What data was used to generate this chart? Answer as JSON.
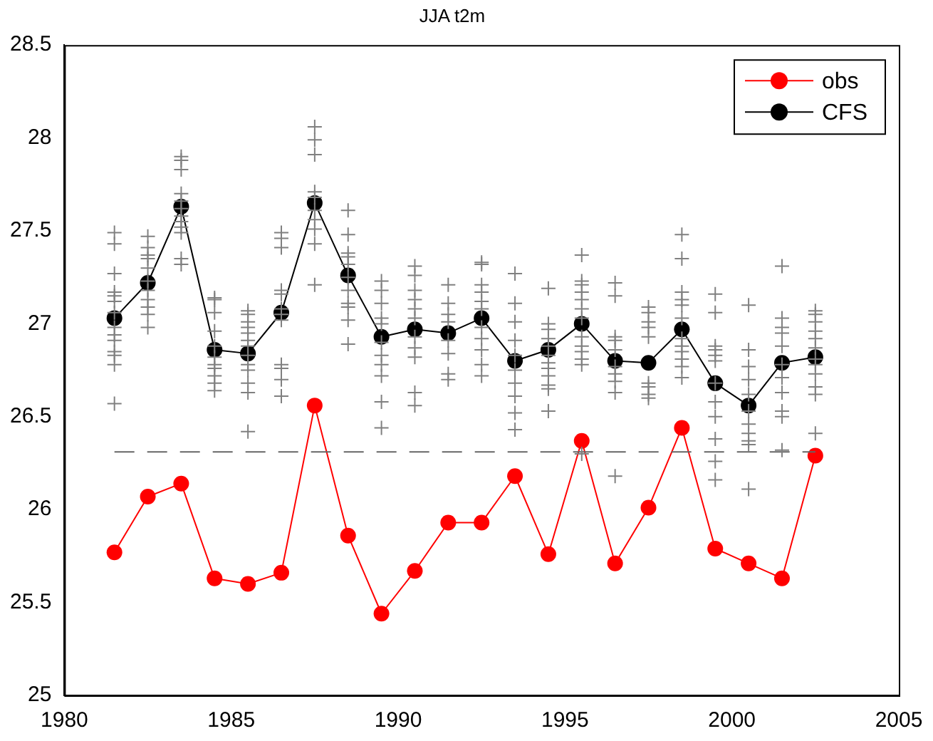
{
  "chart_data": {
    "type": "line",
    "title": "JJA t2m",
    "xlim": [
      1980,
      2005
    ],
    "xticks": [
      1980,
      1985,
      1990,
      1995,
      2000,
      2005
    ],
    "ylim": [
      25,
      28.5
    ],
    "yticks": [
      25,
      25.5,
      26,
      26.5,
      27,
      27.5,
      28,
      28.5
    ],
    "legend": "top right",
    "grid": false,
    "x": [
      1981.5,
      1982.5,
      1983.5,
      1984.5,
      1985.5,
      1986.5,
      1987.5,
      1988.5,
      1989.5,
      1990.5,
      1991.5,
      1992.5,
      1993.5,
      1994.5,
      1995.5,
      1996.5,
      1997.5,
      1998.5,
      1999.5,
      2000.5,
      2001.5,
      2002.5
    ],
    "series": [
      {
        "type": "scatter",
        "color": "#808080",
        "marker": "cross",
        "x": [
          1981.5,
          1981.5,
          1981.5,
          1981.5,
          1981.5,
          1981.5,
          1981.5,
          1981.5,
          1981.5,
          1981.5,
          1981.5,
          1981.5,
          1981.5,
          1981.5,
          1982.5,
          1982.5,
          1982.5,
          1982.5,
          1982.5,
          1982.5,
          1982.5,
          1982.5,
          1982.5,
          1982.5,
          1982.5,
          1983.5,
          1983.5,
          1983.5,
          1983.5,
          1983.5,
          1983.5,
          1983.5,
          1983.5,
          1983.5,
          1983.5,
          1983.5,
          1983.5,
          1984.5,
          1984.5,
          1984.5,
          1984.5,
          1984.5,
          1984.5,
          1984.5,
          1984.5,
          1984.5,
          1984.5,
          1984.5,
          1985.5,
          1985.5,
          1985.5,
          1985.5,
          1985.5,
          1985.5,
          1985.5,
          1985.5,
          1985.5,
          1985.5,
          1985.5,
          1985.5,
          1985.5,
          1986.5,
          1986.5,
          1986.5,
          1986.5,
          1986.5,
          1986.5,
          1986.5,
          1986.5,
          1986.5,
          1986.5,
          1986.5,
          1986.5,
          1987.5,
          1987.5,
          1987.5,
          1987.5,
          1987.5,
          1987.5,
          1987.5,
          1987.5,
          1987.5,
          1987.5,
          1988.5,
          1988.5,
          1988.5,
          1988.5,
          1988.5,
          1988.5,
          1988.5,
          1988.5,
          1988.5,
          1988.5,
          1988.5,
          1989.5,
          1989.5,
          1989.5,
          1989.5,
          1989.5,
          1989.5,
          1989.5,
          1989.5,
          1989.5,
          1989.5,
          1989.5,
          1990.5,
          1990.5,
          1990.5,
          1990.5,
          1990.5,
          1990.5,
          1990.5,
          1990.5,
          1990.5,
          1990.5,
          1990.5,
          1991.5,
          1991.5,
          1991.5,
          1991.5,
          1991.5,
          1991.5,
          1991.5,
          1991.5,
          1992.5,
          1992.5,
          1992.5,
          1992.5,
          1992.5,
          1992.5,
          1992.5,
          1992.5,
          1992.5,
          1992.5,
          1992.5,
          1993.5,
          1993.5,
          1993.5,
          1993.5,
          1993.5,
          1993.5,
          1993.5,
          1993.5,
          1993.5,
          1993.5,
          1994.5,
          1994.5,
          1994.5,
          1994.5,
          1994.5,
          1994.5,
          1994.5,
          1994.5,
          1994.5,
          1994.5,
          1994.5,
          1994.5,
          1995.5,
          1995.5,
          1995.5,
          1995.5,
          1995.5,
          1995.5,
          1995.5,
          1995.5,
          1995.5,
          1995.5,
          1995.5,
          1995.5,
          1995.5,
          1996.5,
          1996.5,
          1996.5,
          1996.5,
          1996.5,
          1996.5,
          1996.5,
          1996.5,
          1996.5,
          1996.5,
          1997.5,
          1997.5,
          1997.5,
          1997.5,
          1997.5,
          1997.5,
          1997.5,
          1997.5,
          1997.5,
          1998.5,
          1998.5,
          1998.5,
          1998.5,
          1998.5,
          1998.5,
          1998.5,
          1998.5,
          1998.5,
          1998.5,
          1998.5,
          1998.5,
          1999.5,
          1999.5,
          1999.5,
          1999.5,
          1999.5,
          1999.5,
          1999.5,
          1999.5,
          1999.5,
          1999.5,
          1999.5,
          1999.5,
          2000.5,
          2000.5,
          2000.5,
          2000.5,
          2000.5,
          2000.5,
          2000.5,
          2000.5,
          2000.5,
          2000.5,
          2000.5,
          2001.5,
          2001.5,
          2001.5,
          2001.5,
          2001.5,
          2001.5,
          2001.5,
          2001.5,
          2001.5,
          2001.5,
          2001.5,
          2002.5,
          2002.5,
          2002.5,
          2002.5,
          2002.5,
          2002.5,
          2002.5,
          2002.5,
          2002.5,
          2002.5,
          2002.5,
          2002.5
        ],
        "values": [
          27.49,
          27.43,
          27.27,
          27.17,
          27.15,
          27.12,
          27.06,
          26.98,
          26.94,
          26.91,
          26.85,
          26.83,
          26.78,
          26.57,
          27.47,
          27.41,
          27.37,
          27.35,
          27.3,
          27.23,
          27.18,
          27.13,
          27.09,
          27.05,
          26.98,
          27.9,
          27.88,
          27.83,
          27.7,
          27.66,
          27.62,
          27.58,
          27.55,
          27.52,
          27.49,
          27.35,
          27.32,
          27.14,
          27.13,
          27.06,
          26.96,
          26.88,
          26.82,
          26.78,
          26.76,
          26.72,
          26.68,
          26.64,
          27.07,
          27.05,
          27.01,
          26.98,
          26.95,
          26.91,
          26.88,
          26.83,
          26.78,
          26.75,
          26.68,
          26.63,
          26.42,
          27.49,
          27.46,
          27.41,
          27.18,
          27.16,
          27.08,
          27.05,
          27.02,
          26.78,
          26.76,
          26.7,
          26.61,
          28.06,
          27.99,
          27.91,
          27.71,
          27.68,
          27.61,
          27.56,
          27.51,
          27.43,
          27.21,
          27.61,
          27.48,
          27.38,
          27.36,
          27.32,
          27.25,
          27.18,
          27.11,
          27.09,
          27.02,
          26.89,
          27.23,
          27.18,
          27.11,
          27.03,
          27,
          26.9,
          26.83,
          26.78,
          26.72,
          26.58,
          26.44,
          27.31,
          27.26,
          27.18,
          27.13,
          27.08,
          27.03,
          26.93,
          26.87,
          26.82,
          26.63,
          26.56,
          27.21,
          27.11,
          27.05,
          27.01,
          26.91,
          26.84,
          26.73,
          26.7,
          27.33,
          27.32,
          27.21,
          27.17,
          27.12,
          27.08,
          26.98,
          26.92,
          26.86,
          26.78,
          26.72,
          27.27,
          27.11,
          27.01,
          26.91,
          26.83,
          26.75,
          26.68,
          26.61,
          26.52,
          26.43,
          27.19,
          27,
          26.97,
          26.92,
          26.88,
          26.83,
          26.79,
          26.76,
          26.72,
          26.67,
          26.65,
          26.53,
          27.37,
          27.23,
          27.21,
          27.17,
          27.13,
          27.08,
          27.03,
          26.93,
          26.88,
          26.85,
          26.81,
          26.78,
          26.3,
          27.22,
          27.15,
          26.93,
          26.91,
          26.86,
          26.77,
          26.73,
          26.69,
          26.63,
          26.18,
          27.09,
          27.06,
          27.01,
          26.98,
          26.93,
          26.68,
          26.66,
          26.62,
          26.6,
          27.48,
          27.35,
          27.17,
          27.13,
          27.1,
          27.03,
          26.92,
          26.88,
          26.85,
          26.81,
          26.77,
          26.71,
          27.16,
          27.06,
          26.88,
          26.86,
          26.83,
          26.8,
          26.68,
          26.58,
          26.5,
          26.38,
          26.26,
          26.16,
          27.1,
          26.86,
          26.77,
          26.7,
          26.62,
          26.53,
          26.46,
          26.41,
          26.37,
          26.35,
          26.11,
          27.31,
          27.03,
          26.98,
          26.95,
          26.88,
          26.78,
          26.71,
          26.63,
          26.53,
          26.5,
          26.32,
          27.07,
          27.05,
          27.01,
          26.96,
          26.92,
          26.87,
          26.81,
          26.78,
          26.73,
          26.66,
          26.62,
          26.41
        ]
      },
      {
        "type": "line",
        "color": "#666666",
        "marker": "none",
        "line_style": "dashed",
        "x": [
          1981.5,
          2002.5
        ],
        "values": [
          26.31,
          26.31
        ]
      },
      {
        "name": "obs",
        "color": "#ff0000",
        "marker": "circle",
        "values": [
          25.77,
          26.07,
          26.14,
          25.63,
          25.6,
          25.66,
          26.56,
          25.86,
          25.44,
          25.67,
          25.93,
          25.93,
          26.18,
          25.76,
          26.37,
          25.71,
          26.01,
          26.44,
          25.79,
          25.71,
          25.63,
          26.29
        ]
      },
      {
        "name": "CFS",
        "color": "#000000",
        "marker": "circle",
        "values": [
          27.03,
          27.22,
          27.63,
          26.86,
          26.84,
          27.06,
          27.65,
          27.26,
          26.93,
          26.97,
          26.95,
          27.03,
          26.8,
          26.86,
          27,
          26.8,
          26.79,
          26.97,
          26.68,
          26.56,
          26.79,
          26.82
        ]
      }
    ]
  }
}
